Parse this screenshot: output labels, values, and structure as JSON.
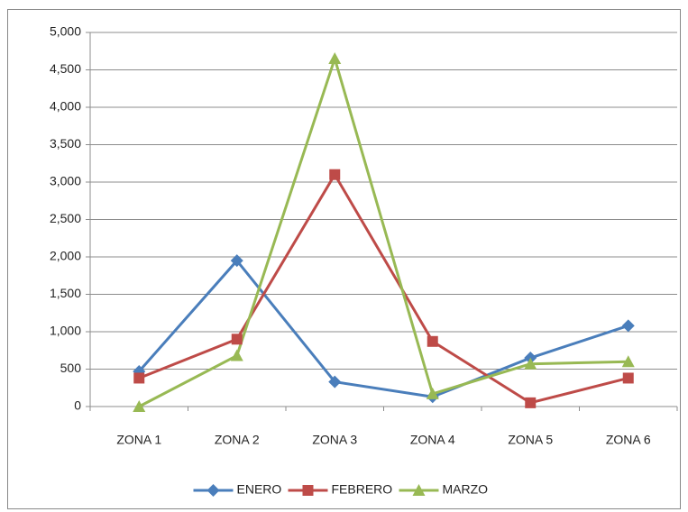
{
  "chart_data": {
    "type": "line",
    "categories": [
      "ZONA 1",
      "ZONA 2",
      "ZONA 3",
      "ZONA 4",
      "ZONA 5",
      "ZONA 6"
    ],
    "series": [
      {
        "name": "ENERO",
        "color": "#4a7ebb",
        "marker": "diamond",
        "values": [
          470,
          1950,
          330,
          130,
          650,
          1080
        ]
      },
      {
        "name": "FEBRERO",
        "color": "#be4b48",
        "marker": "square",
        "values": [
          380,
          900,
          3100,
          870,
          50,
          380
        ]
      },
      {
        "name": "MARZO",
        "color": "#98b954",
        "marker": "triangle",
        "values": [
          0,
          680,
          4650,
          170,
          570,
          600
        ]
      }
    ],
    "ylim": [
      0,
      5000
    ],
    "yticks": [
      0,
      500,
      {
        "value": 1000,
        "label": "1,000"
      },
      {
        "value": 1500,
        "label": "1,500"
      },
      {
        "value": 2000,
        "label": "2,000"
      },
      {
        "value": 2500,
        "label": "2,500"
      },
      {
        "value": 3000,
        "label": "3,000"
      },
      {
        "value": 3500,
        "label": "3,500"
      },
      {
        "value": 4000,
        "label": "4,000"
      },
      {
        "value": 4500,
        "label": "4,500"
      },
      {
        "value": 5000,
        "label": "5,000"
      }
    ],
    "grid": true,
    "legend": "bottom"
  }
}
